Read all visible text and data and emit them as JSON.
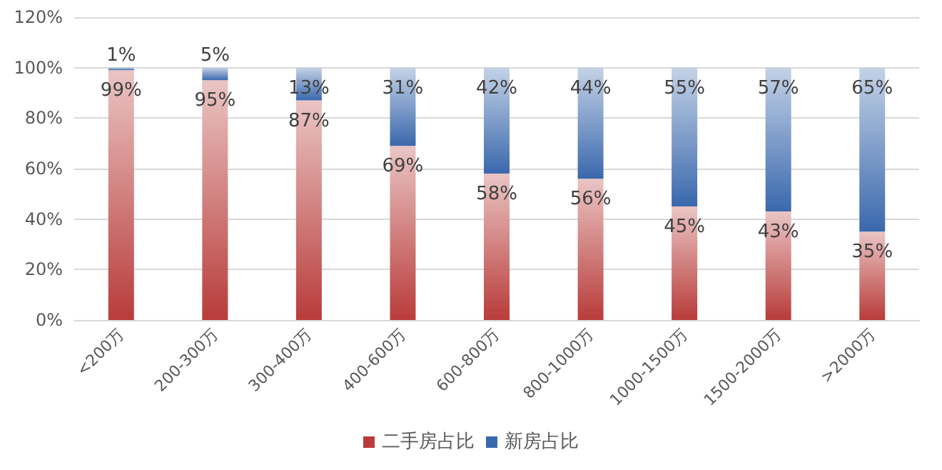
{
  "chart_data": {
    "type": "bar",
    "stacked": true,
    "categories": [
      "<200万",
      "200-300万",
      "300-400万",
      "400-600万",
      "600-800万",
      "800-1000万",
      "1000-1500万",
      "1500-2000万",
      ">2000万"
    ],
    "series": [
      {
        "name": "二手房占比",
        "color": "#b83c3a",
        "values": [
          99,
          95,
          87,
          69,
          58,
          56,
          45,
          43,
          35
        ],
        "value_labels": [
          "99%",
          "95%",
          "87%",
          "69%",
          "58%",
          "56%",
          "45%",
          "43%",
          "35%"
        ]
      },
      {
        "name": "新房占比",
        "color": "#3a68ad",
        "values": [
          1,
          5,
          13,
          31,
          42,
          44,
          55,
          57,
          65
        ],
        "value_labels": [
          "1%",
          "5%",
          "13%",
          "31%",
          "42%",
          "44%",
          "55%",
          "57%",
          "65%"
        ]
      }
    ],
    "ylim": [
      0,
      120
    ],
    "yticks": [
      {
        "value": 0,
        "label": "0%"
      },
      {
        "value": 20,
        "label": "20%"
      },
      {
        "value": 40,
        "label": "40%"
      },
      {
        "value": 60,
        "label": "60%"
      },
      {
        "value": 80,
        "label": "80%"
      },
      {
        "value": 100,
        "label": "100%"
      },
      {
        "value": 120,
        "label": "120%"
      }
    ],
    "grid": "y",
    "legend": "bottom"
  }
}
